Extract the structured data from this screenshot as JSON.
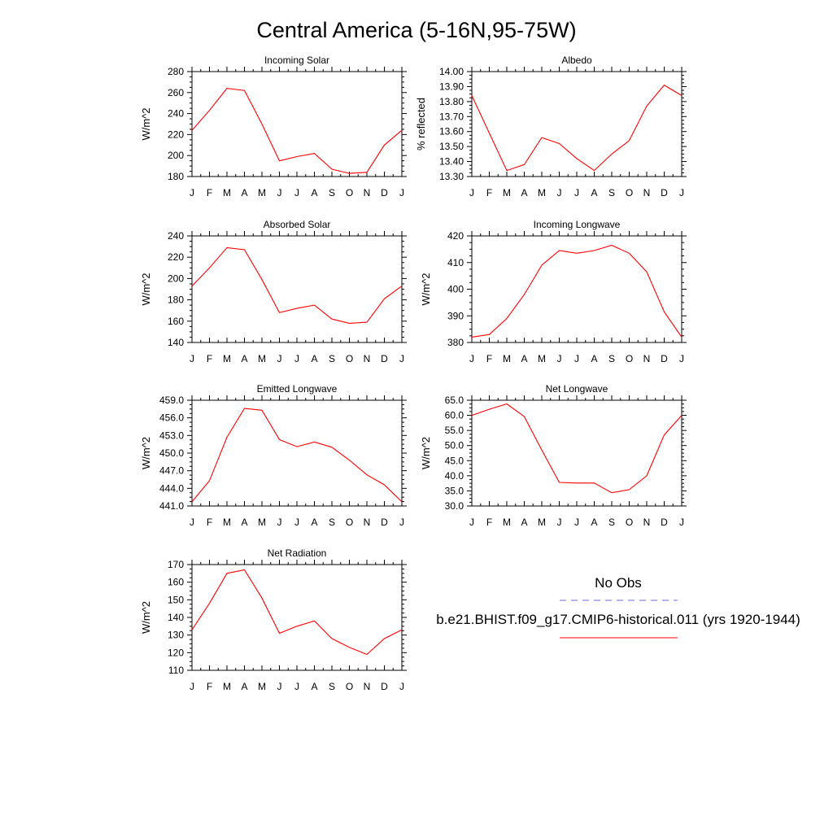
{
  "figure": {
    "title": "Central America (5-16N,95-75W)"
  },
  "legend": {
    "entries": [
      {
        "label": "No Obs",
        "color": "#6a6ae8",
        "style": "dashed"
      },
      {
        "label": "b.e21.BHIST.f09_g17.CMIP6-historical.011 (yrs 1920-1944)",
        "color": "#ff0000",
        "style": "solid"
      }
    ]
  },
  "chart_data": [
    {
      "type": "line",
      "title": "Incoming Solar",
      "ylabel": "W/m^2",
      "x": [
        "J",
        "F",
        "M",
        "A",
        "M",
        "J",
        "J",
        "A",
        "S",
        "O",
        "N",
        "D",
        "J"
      ],
      "ylim": [
        180,
        280
      ],
      "yticks": [
        180,
        200,
        220,
        240,
        260,
        280
      ],
      "ytick_labels": [
        "180",
        "200",
        "220",
        "240",
        "260",
        "280"
      ],
      "series": [
        {
          "color": "#ff0000",
          "values": [
            224,
            243,
            264,
            262,
            230,
            195,
            199,
            202,
            187,
            183,
            184,
            210,
            224
          ]
        }
      ]
    },
    {
      "type": "line",
      "title": "Albedo",
      "ylabel": "% reflected",
      "x": [
        "J",
        "F",
        "M",
        "A",
        "M",
        "J",
        "J",
        "A",
        "S",
        "O",
        "N",
        "D",
        "J"
      ],
      "ylim": [
        13.3,
        14.0
      ],
      "yticks": [
        13.3,
        13.4,
        13.5,
        13.6,
        13.7,
        13.8,
        13.9,
        14.0
      ],
      "ytick_labels": [
        "13.30",
        "13.40",
        "13.50",
        "13.60",
        "13.70",
        "13.80",
        "13.90",
        "14.00"
      ],
      "series": [
        {
          "color": "#ff0000",
          "values": [
            13.84,
            13.59,
            13.34,
            13.38,
            13.56,
            13.52,
            13.42,
            13.34,
            13.45,
            13.54,
            13.77,
            13.91,
            13.84
          ]
        }
      ]
    },
    {
      "type": "line",
      "title": "Absorbed Solar",
      "ylabel": "W/m^2",
      "x": [
        "J",
        "F",
        "M",
        "A",
        "M",
        "J",
        "J",
        "A",
        "S",
        "O",
        "N",
        "D",
        "J"
      ],
      "ylim": [
        140,
        240
      ],
      "yticks": [
        140,
        160,
        180,
        200,
        220,
        240
      ],
      "ytick_labels": [
        "140",
        "160",
        "180",
        "200",
        "220",
        "240"
      ],
      "series": [
        {
          "color": "#ff0000",
          "values": [
            193,
            210,
            229,
            227,
            199,
            168,
            172,
            175,
            162,
            158,
            159,
            181,
            193
          ]
        }
      ]
    },
    {
      "type": "line",
      "title": "Incoming Longwave",
      "ylabel": "W/m^2",
      "x": [
        "J",
        "F",
        "M",
        "A",
        "M",
        "J",
        "J",
        "A",
        "S",
        "O",
        "N",
        "D",
        "J"
      ],
      "ylim": [
        380,
        420
      ],
      "yticks": [
        380,
        390,
        400,
        410,
        420
      ],
      "ytick_labels": [
        "380",
        "390",
        "400",
        "410",
        "420"
      ],
      "series": [
        {
          "color": "#ff0000",
          "values": [
            382,
            383,
            389,
            398,
            409,
            414.5,
            413.5,
            414.5,
            416.5,
            413.5,
            406.5,
            391.5,
            382
          ]
        }
      ]
    },
    {
      "type": "line",
      "title": "Emitted Longwave",
      "ylabel": "W/m^2",
      "x": [
        "J",
        "F",
        "M",
        "A",
        "M",
        "J",
        "J",
        "A",
        "S",
        "O",
        "N",
        "D",
        "J"
      ],
      "ylim": [
        441,
        459
      ],
      "yticks": [
        441,
        444,
        447,
        450,
        453,
        456,
        459
      ],
      "ytick_labels": [
        "441.0",
        "444.0",
        "447.0",
        "450.0",
        "453.0",
        "456.0",
        "459.0"
      ],
      "series": [
        {
          "color": "#ff0000",
          "values": [
            441.7,
            445.3,
            452.7,
            457.6,
            457.3,
            452.3,
            451.1,
            451.9,
            451.0,
            448.8,
            446.3,
            444.6,
            441.7
          ]
        }
      ]
    },
    {
      "type": "line",
      "title": "Net Longwave",
      "ylabel": "W/m^2",
      "x": [
        "J",
        "F",
        "M",
        "A",
        "M",
        "J",
        "J",
        "A",
        "S",
        "O",
        "N",
        "D",
        "J"
      ],
      "ylim": [
        30,
        65
      ],
      "yticks": [
        30,
        35,
        40,
        45,
        50,
        55,
        60,
        65
      ],
      "ytick_labels": [
        "30.0",
        "35.0",
        "40.0",
        "45.0",
        "50.0",
        "55.0",
        "60.0",
        "65.0"
      ],
      "series": [
        {
          "color": "#ff0000",
          "values": [
            60.0,
            62.0,
            63.8,
            59.6,
            48.5,
            37.8,
            37.6,
            37.6,
            34.4,
            35.4,
            40.0,
            53.5,
            60.0
          ]
        }
      ]
    },
    {
      "type": "line",
      "title": "Net Radiation",
      "ylabel": "W/m^2",
      "x": [
        "J",
        "F",
        "M",
        "A",
        "M",
        "J",
        "J",
        "A",
        "S",
        "O",
        "N",
        "D",
        "J"
      ],
      "ylim": [
        110,
        170
      ],
      "yticks": [
        110,
        120,
        130,
        140,
        150,
        160,
        170
      ],
      "ytick_labels": [
        "110",
        "120",
        "130",
        "140",
        "150",
        "160",
        "170"
      ],
      "series": [
        {
          "color": "#ff0000",
          "values": [
            133,
            148,
            165,
            167,
            151,
            131,
            135,
            138,
            128,
            123,
            119,
            128,
            133
          ]
        }
      ]
    }
  ]
}
